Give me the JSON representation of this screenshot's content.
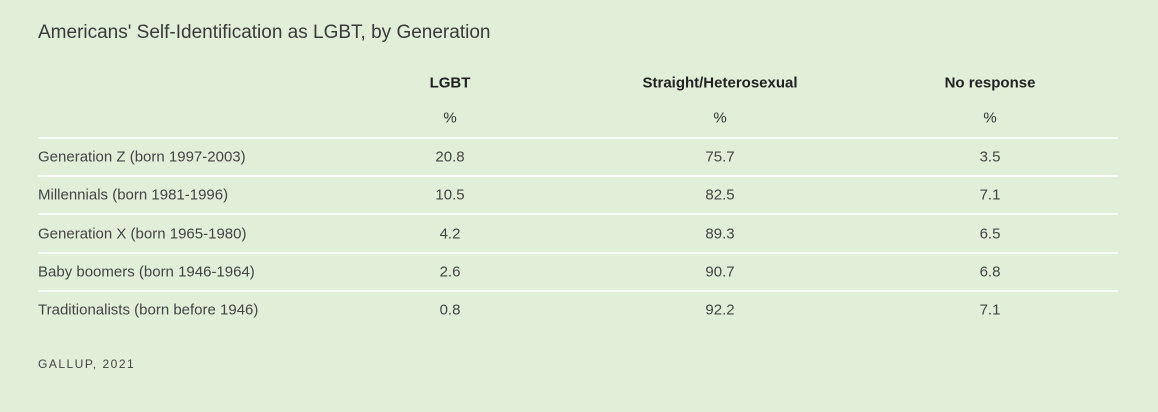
{
  "header": {
    "title": "Americans' Self-Identification as LGBT, by Generation"
  },
  "table": {
    "columns": [
      "LGBT",
      "Straight/Heterosexual",
      "No response"
    ],
    "units": [
      "%",
      "%",
      "%"
    ],
    "rows": [
      [
        "Generation Z (born 1997-2003)",
        "20.8",
        "75.7",
        "3.5"
      ],
      [
        "Millennials (born 1981-1996)",
        "10.5",
        "82.5",
        "7.1"
      ],
      [
        "Generation X (born 1965-1980)",
        "4.2",
        "89.3",
        "6.5"
      ],
      [
        "Baby boomers (born 1946-1964)",
        "2.6",
        "90.7",
        "6.8"
      ],
      [
        "Traditionalists (born before 1946)",
        "0.8",
        "92.2",
        "7.1"
      ]
    ]
  },
  "footer": {
    "source": "GALLUP, 2021"
  }
}
